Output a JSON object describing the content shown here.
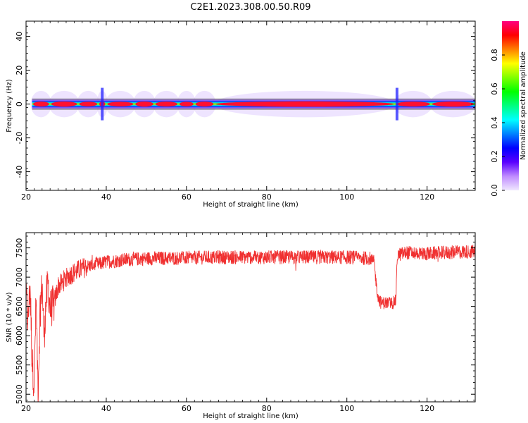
{
  "title": "C2E1.2023.308.00.50.R09",
  "chart_data": [
    {
      "type": "heatmap",
      "xlabel": "Height of straight line (km)",
      "ylabel": "Frequency (Hz)",
      "xlim": [
        20,
        132
      ],
      "ylim": [
        -51,
        49
      ],
      "xticks": [
        20,
        40,
        60,
        80,
        100,
        120
      ],
      "yticks": [
        -40,
        -20,
        0,
        20,
        40
      ],
      "colorbar": {
        "label": "Normalized spectral amplitude",
        "range": [
          0,
          1
        ],
        "ticks": [
          0.0,
          0.2,
          0.4,
          0.6,
          0.8
        ],
        "colormap": [
          "#f0e8ff",
          "#c08cff",
          "#5a00ff",
          "#0000ff",
          "#0080ff",
          "#00ffff",
          "#00ff80",
          "#00ff00",
          "#80ff00",
          "#ffff00",
          "#ff8000",
          "#ff0000",
          "#ff0080"
        ]
      },
      "band": {
        "center_hz": 0,
        "half_width_hz": 3
      },
      "segments": [
        {
          "x": [
            21.5,
            26
          ],
          "peak": 0.9
        },
        {
          "x": [
            26,
            33
          ],
          "peak": 0.95
        },
        {
          "x": [
            33,
            38
          ],
          "peak": 0.85
        },
        {
          "x": [
            38,
            40
          ],
          "peak": 0.9
        },
        {
          "x": [
            40,
            47
          ],
          "peak": 0.85
        },
        {
          "x": [
            47,
            52
          ],
          "peak": 0.95
        },
        {
          "x": [
            52,
            58
          ],
          "peak": 0.9
        },
        {
          "x": [
            58,
            62
          ],
          "peak": 0.85
        },
        {
          "x": [
            62,
            67
          ],
          "peak": 0.9
        },
        {
          "x": [
            67,
            112
          ],
          "peak": 1.0
        },
        {
          "x": [
            112,
            121
          ],
          "peak": 0.9
        },
        {
          "x": [
            121,
            132
          ],
          "peak": 0.95
        }
      ],
      "spikes": [
        39,
        112.5
      ]
    },
    {
      "type": "line",
      "xlabel": "Height of straight line (km)",
      "ylabel": "SNR (10 * v/v)",
      "xlim": [
        20,
        132
      ],
      "ylim": [
        4870,
        7760
      ],
      "xticks": [
        20,
        40,
        60,
        80,
        100,
        120
      ],
      "yticks": [
        5000,
        5500,
        6000,
        6500,
        7000,
        7500
      ],
      "color": "#f03030",
      "profile": [
        [
          20,
          6700
        ],
        [
          20.5,
          6200
        ],
        [
          21,
          6900
        ],
        [
          21.5,
          5600
        ],
        [
          22,
          5200
        ],
        [
          22.5,
          6600
        ],
        [
          23,
          5100
        ],
        [
          23.5,
          6400
        ],
        [
          24,
          6900
        ],
        [
          24.5,
          6000
        ],
        [
          25,
          6600
        ],
        [
          25.5,
          6900
        ],
        [
          26,
          6450
        ],
        [
          27,
          6550
        ],
        [
          28,
          6850
        ],
        [
          29,
          6900
        ],
        [
          30,
          7000
        ],
        [
          32,
          7080
        ],
        [
          34,
          7150
        ],
        [
          36,
          7200
        ],
        [
          38,
          7220
        ],
        [
          40,
          7260
        ],
        [
          45,
          7300
        ],
        [
          50,
          7320
        ],
        [
          60,
          7330
        ],
        [
          70,
          7340
        ],
        [
          80,
          7340
        ],
        [
          90,
          7340
        ],
        [
          100,
          7340
        ],
        [
          106,
          7320
        ],
        [
          106.8,
          7250
        ],
        [
          107.3,
          6900
        ],
        [
          107.8,
          6650
        ],
        [
          108.5,
          6560
        ],
        [
          110,
          6560
        ],
        [
          111.5,
          6560
        ],
        [
          112.2,
          6600
        ],
        [
          112.6,
          7380
        ],
        [
          115,
          7420
        ],
        [
          120,
          7400
        ],
        [
          125,
          7420
        ],
        [
          132,
          7440
        ]
      ]
    }
  ]
}
